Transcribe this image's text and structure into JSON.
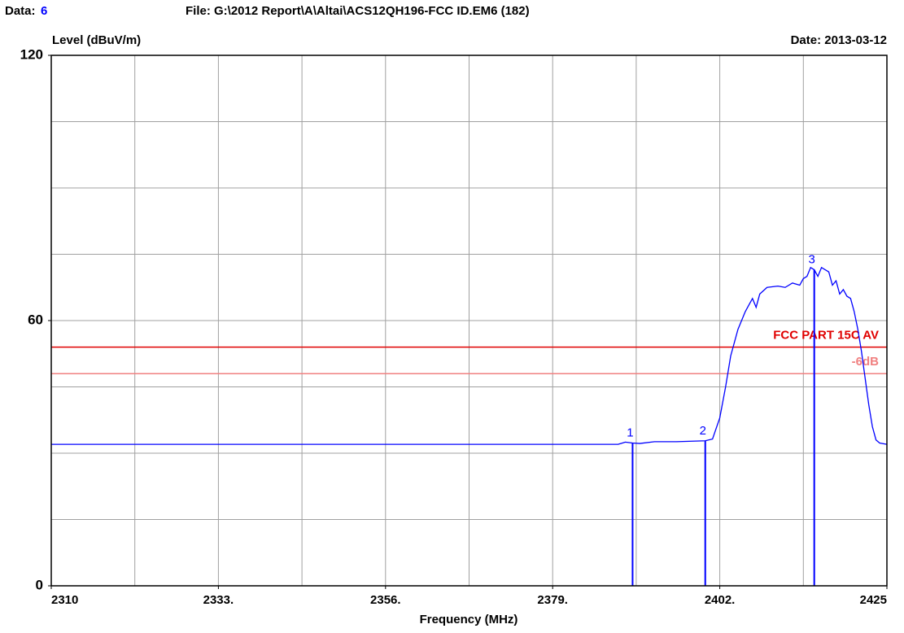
{
  "chart_data": {
    "type": "line",
    "data_label": "Data:",
    "data_number": "6",
    "file": "File: G:\\2012 Report\\A\\Altai\\ACS12QH196-FCC ID.EM6  (182)",
    "y_label": "Level (dBuV/m)",
    "date": "Date: 2013-03-12",
    "x_label": "Frequency (MHz)",
    "xlim": [
      2310,
      2425
    ],
    "ylim": [
      0,
      120
    ],
    "xticks": [
      2310,
      {
        "value": 2333,
        "label": "2333."
      },
      {
        "value": 2356,
        "label": "2356."
      },
      {
        "value": 2379,
        "label": "2379."
      },
      {
        "value": 2402,
        "label": "2402."
      },
      2425
    ],
    "yticks": [
      0,
      60,
      120
    ],
    "xgrid": [
      2321.5,
      2333,
      2344.5,
      2356,
      2367.5,
      2379,
      2390.5,
      2402,
      2413.5
    ],
    "ygrid": [
      15,
      30,
      45,
      60,
      75,
      90,
      105
    ],
    "series": [
      {
        "color": "#0000ff",
        "x": [
          2310,
          2388,
          2389,
          2390,
          2391,
          2393,
          2396,
          2400,
          2401,
          2402,
          2402.8,
          2403.5,
          2404.5,
          2405.5,
          2406,
          2406.5,
          2407,
          2407.5,
          2408.5,
          2410,
          2411,
          2412,
          2413,
          2413.5,
          2414,
          2414.5,
          2415,
          2415.5,
          2416,
          2417,
          2417.5,
          2418,
          2418.5,
          2419,
          2419.5,
          2420,
          2420.5,
          2421,
          2421.5,
          2422,
          2422.5,
          2423,
          2423.5,
          2424,
          2425
        ],
        "values": [
          32,
          32,
          32.5,
          32.3,
          32.2,
          32.6,
          32.6,
          32.8,
          33.2,
          38,
          45,
          52,
          58,
          62,
          63.5,
          65,
          63,
          66,
          67.5,
          67.8,
          67.5,
          68.5,
          68,
          69.5,
          70,
          72,
          71.5,
          70,
          72,
          71,
          68,
          69,
          66,
          67,
          65.5,
          65,
          62,
          58,
          53,
          47,
          41,
          36,
          33,
          32.3,
          32
        ]
      }
    ],
    "limits": [
      {
        "label": "FCC PART 15C AV",
        "value": 54,
        "color": "#e00000"
      },
      {
        "label": "-6dB",
        "value": 48,
        "color": "#f08080"
      }
    ],
    "markers": [
      {
        "label": "1",
        "x": 2390,
        "value": 32.3
      },
      {
        "label": "2",
        "x": 2400,
        "value": 32.8
      },
      {
        "label": "3",
        "x": 2415,
        "value": 71.5
      }
    ],
    "marker_color": "#0000ff",
    "grid_color": "#a0a0a0"
  }
}
